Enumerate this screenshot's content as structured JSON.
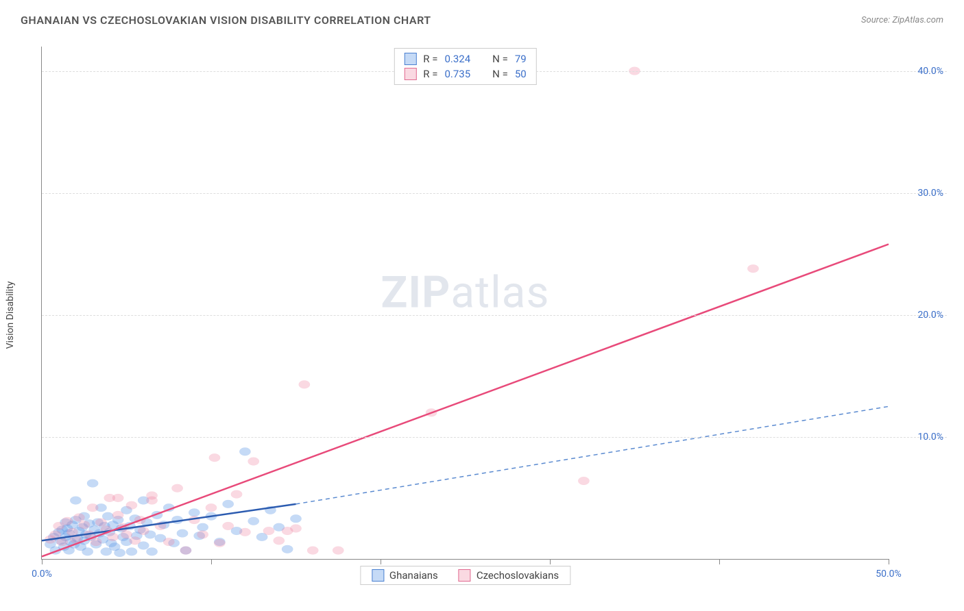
{
  "header": {
    "title": "GHANAIAN VS CZECHOSLOVAKIAN VISION DISABILITY CORRELATION CHART",
    "source_prefix": "Source: ",
    "source_name": "ZipAtlas.com"
  },
  "chart": {
    "type": "scatter",
    "ylabel": "Vision Disability",
    "watermark_bold": "ZIP",
    "watermark_light": "atlas",
    "background_color": "#ffffff",
    "grid_color": "#dddddd",
    "axis_color": "#888888",
    "tick_label_color": "#3b6fc9",
    "xlim": [
      0,
      50
    ],
    "ylim": [
      0,
      42
    ],
    "x_ticks": [
      0,
      10,
      20,
      30,
      40,
      50
    ],
    "x_tick_labels": [
      "0.0%",
      "",
      "",
      "",
      "",
      "50.0%"
    ],
    "y_gridlines": [
      10,
      20,
      30,
      40
    ],
    "y_tick_labels": [
      "10.0%",
      "20.0%",
      "30.0%",
      "40.0%"
    ],
    "series": [
      {
        "name": "Ghanaians",
        "color_fill": "rgba(90,150,230,0.35)",
        "color_stroke": "#4a80d0",
        "marker_radius": 8,
        "R": "0.324",
        "N": "79",
        "trend": {
          "x1": 0,
          "y1": 1.5,
          "x2": 15,
          "y2": 4.5,
          "solid_color": "#2b5bb0",
          "dash_x2": 50,
          "dash_y2": 12.5,
          "dash_color": "#5a8ad0"
        },
        "points": [
          [
            0.5,
            1.2
          ],
          [
            0.7,
            1.8
          ],
          [
            0.8,
            0.7
          ],
          [
            1.0,
            2.2
          ],
          [
            1.1,
            1.5
          ],
          [
            1.2,
            2.4
          ],
          [
            1.3,
            1.0
          ],
          [
            1.4,
            3.0
          ],
          [
            1.4,
            1.8
          ],
          [
            1.5,
            2.5
          ],
          [
            1.6,
            0.7
          ],
          [
            1.6,
            2.1
          ],
          [
            1.7,
            1.4
          ],
          [
            1.8,
            2.8
          ],
          [
            1.9,
            1.2
          ],
          [
            2.0,
            3.2
          ],
          [
            2.0,
            4.8
          ],
          [
            2.1,
            1.7
          ],
          [
            2.2,
            2.3
          ],
          [
            2.3,
            1.0
          ],
          [
            2.4,
            2.6
          ],
          [
            2.5,
            3.5
          ],
          [
            2.5,
            1.5
          ],
          [
            2.6,
            2.0
          ],
          [
            2.7,
            0.6
          ],
          [
            2.8,
            2.9
          ],
          [
            2.9,
            1.8
          ],
          [
            3.0,
            6.2
          ],
          [
            3.1,
            2.4
          ],
          [
            3.2,
            1.2
          ],
          [
            3.3,
            3.0
          ],
          [
            3.4,
            2.1
          ],
          [
            3.5,
            4.2
          ],
          [
            3.6,
            1.6
          ],
          [
            3.7,
            2.7
          ],
          [
            3.8,
            0.6
          ],
          [
            3.9,
            3.5
          ],
          [
            4.0,
            2.2
          ],
          [
            4.1,
            1.3
          ],
          [
            4.2,
            2.8
          ],
          [
            4.3,
            1.0
          ],
          [
            4.5,
            3.2
          ],
          [
            4.6,
            0.5
          ],
          [
            4.7,
            2.5
          ],
          [
            4.8,
            1.8
          ],
          [
            5.0,
            4.0
          ],
          [
            5.0,
            1.4
          ],
          [
            5.2,
            2.7
          ],
          [
            5.3,
            0.6
          ],
          [
            5.5,
            3.3
          ],
          [
            5.6,
            1.9
          ],
          [
            5.8,
            2.4
          ],
          [
            6.0,
            4.8
          ],
          [
            6.0,
            1.1
          ],
          [
            6.2,
            3.0
          ],
          [
            6.4,
            2.0
          ],
          [
            6.5,
            0.6
          ],
          [
            6.8,
            3.6
          ],
          [
            7.0,
            1.7
          ],
          [
            7.2,
            2.8
          ],
          [
            7.5,
            4.2
          ],
          [
            7.8,
            1.3
          ],
          [
            8.0,
            3.2
          ],
          [
            8.3,
            2.1
          ],
          [
            8.5,
            0.7
          ],
          [
            9.0,
            3.8
          ],
          [
            9.3,
            1.9
          ],
          [
            9.5,
            2.6
          ],
          [
            10.0,
            3.5
          ],
          [
            10.5,
            1.4
          ],
          [
            11.0,
            4.5
          ],
          [
            11.5,
            2.3
          ],
          [
            12.0,
            8.8
          ],
          [
            12.5,
            3.1
          ],
          [
            13.0,
            1.8
          ],
          [
            13.5,
            4.0
          ],
          [
            14.0,
            2.6
          ],
          [
            14.5,
            0.8
          ],
          [
            15.0,
            3.3
          ]
        ]
      },
      {
        "name": "Czechoslovakians",
        "color_fill": "rgba(240,130,160,0.30)",
        "color_stroke": "#e06a90",
        "marker_radius": 8,
        "R": "0.735",
        "N": "50",
        "trend": {
          "x1": 0,
          "y1": 0.2,
          "x2": 50,
          "y2": 25.8,
          "solid_color": "#e84a7a"
        },
        "points": [
          [
            0.5,
            1.6
          ],
          [
            0.8,
            2.0
          ],
          [
            1.0,
            2.7
          ],
          [
            1.2,
            1.4
          ],
          [
            1.5,
            3.1
          ],
          [
            1.8,
            2.2
          ],
          [
            2.0,
            1.6
          ],
          [
            2.2,
            3.4
          ],
          [
            2.5,
            2.8
          ],
          [
            2.8,
            2.0
          ],
          [
            3.0,
            4.2
          ],
          [
            3.2,
            1.4
          ],
          [
            3.5,
            3.0
          ],
          [
            3.8,
            2.4
          ],
          [
            4.0,
            5.0
          ],
          [
            4.2,
            1.8
          ],
          [
            4.5,
            3.6
          ],
          [
            4.8,
            2.6
          ],
          [
            5.0,
            2.0
          ],
          [
            5.3,
            4.4
          ],
          [
            5.5,
            1.5
          ],
          [
            5.8,
            3.2
          ],
          [
            6.0,
            2.3
          ],
          [
            6.5,
            4.8
          ],
          [
            7.0,
            2.7
          ],
          [
            7.5,
            1.4
          ],
          [
            8.0,
            5.8
          ],
          [
            8.5,
            0.7
          ],
          [
            9.0,
            3.2
          ],
          [
            9.5,
            2.0
          ],
          [
            10.0,
            4.2
          ],
          [
            10.2,
            8.3
          ],
          [
            10.5,
            1.3
          ],
          [
            11.0,
            2.7
          ],
          [
            11.5,
            5.3
          ],
          [
            12.0,
            2.2
          ],
          [
            12.5,
            8.0
          ],
          [
            13.4,
            2.3
          ],
          [
            14.0,
            1.5
          ],
          [
            14.5,
            2.3
          ],
          [
            15.0,
            2.5
          ],
          [
            15.5,
            14.3
          ],
          [
            16.0,
            0.7
          ],
          [
            17.5,
            0.7
          ],
          [
            23.0,
            12.0
          ],
          [
            32.0,
            6.4
          ],
          [
            35.0,
            40.0
          ],
          [
            42.0,
            23.8
          ],
          [
            6.5,
            5.2
          ],
          [
            4.5,
            5.0
          ]
        ]
      }
    ],
    "legend_bottom": [
      {
        "label": "Ghanaians",
        "fill": "rgba(90,150,230,0.35)",
        "stroke": "#4a80d0"
      },
      {
        "label": "Czechoslovakians",
        "fill": "rgba(240,130,160,0.30)",
        "stroke": "#e06a90"
      }
    ]
  }
}
